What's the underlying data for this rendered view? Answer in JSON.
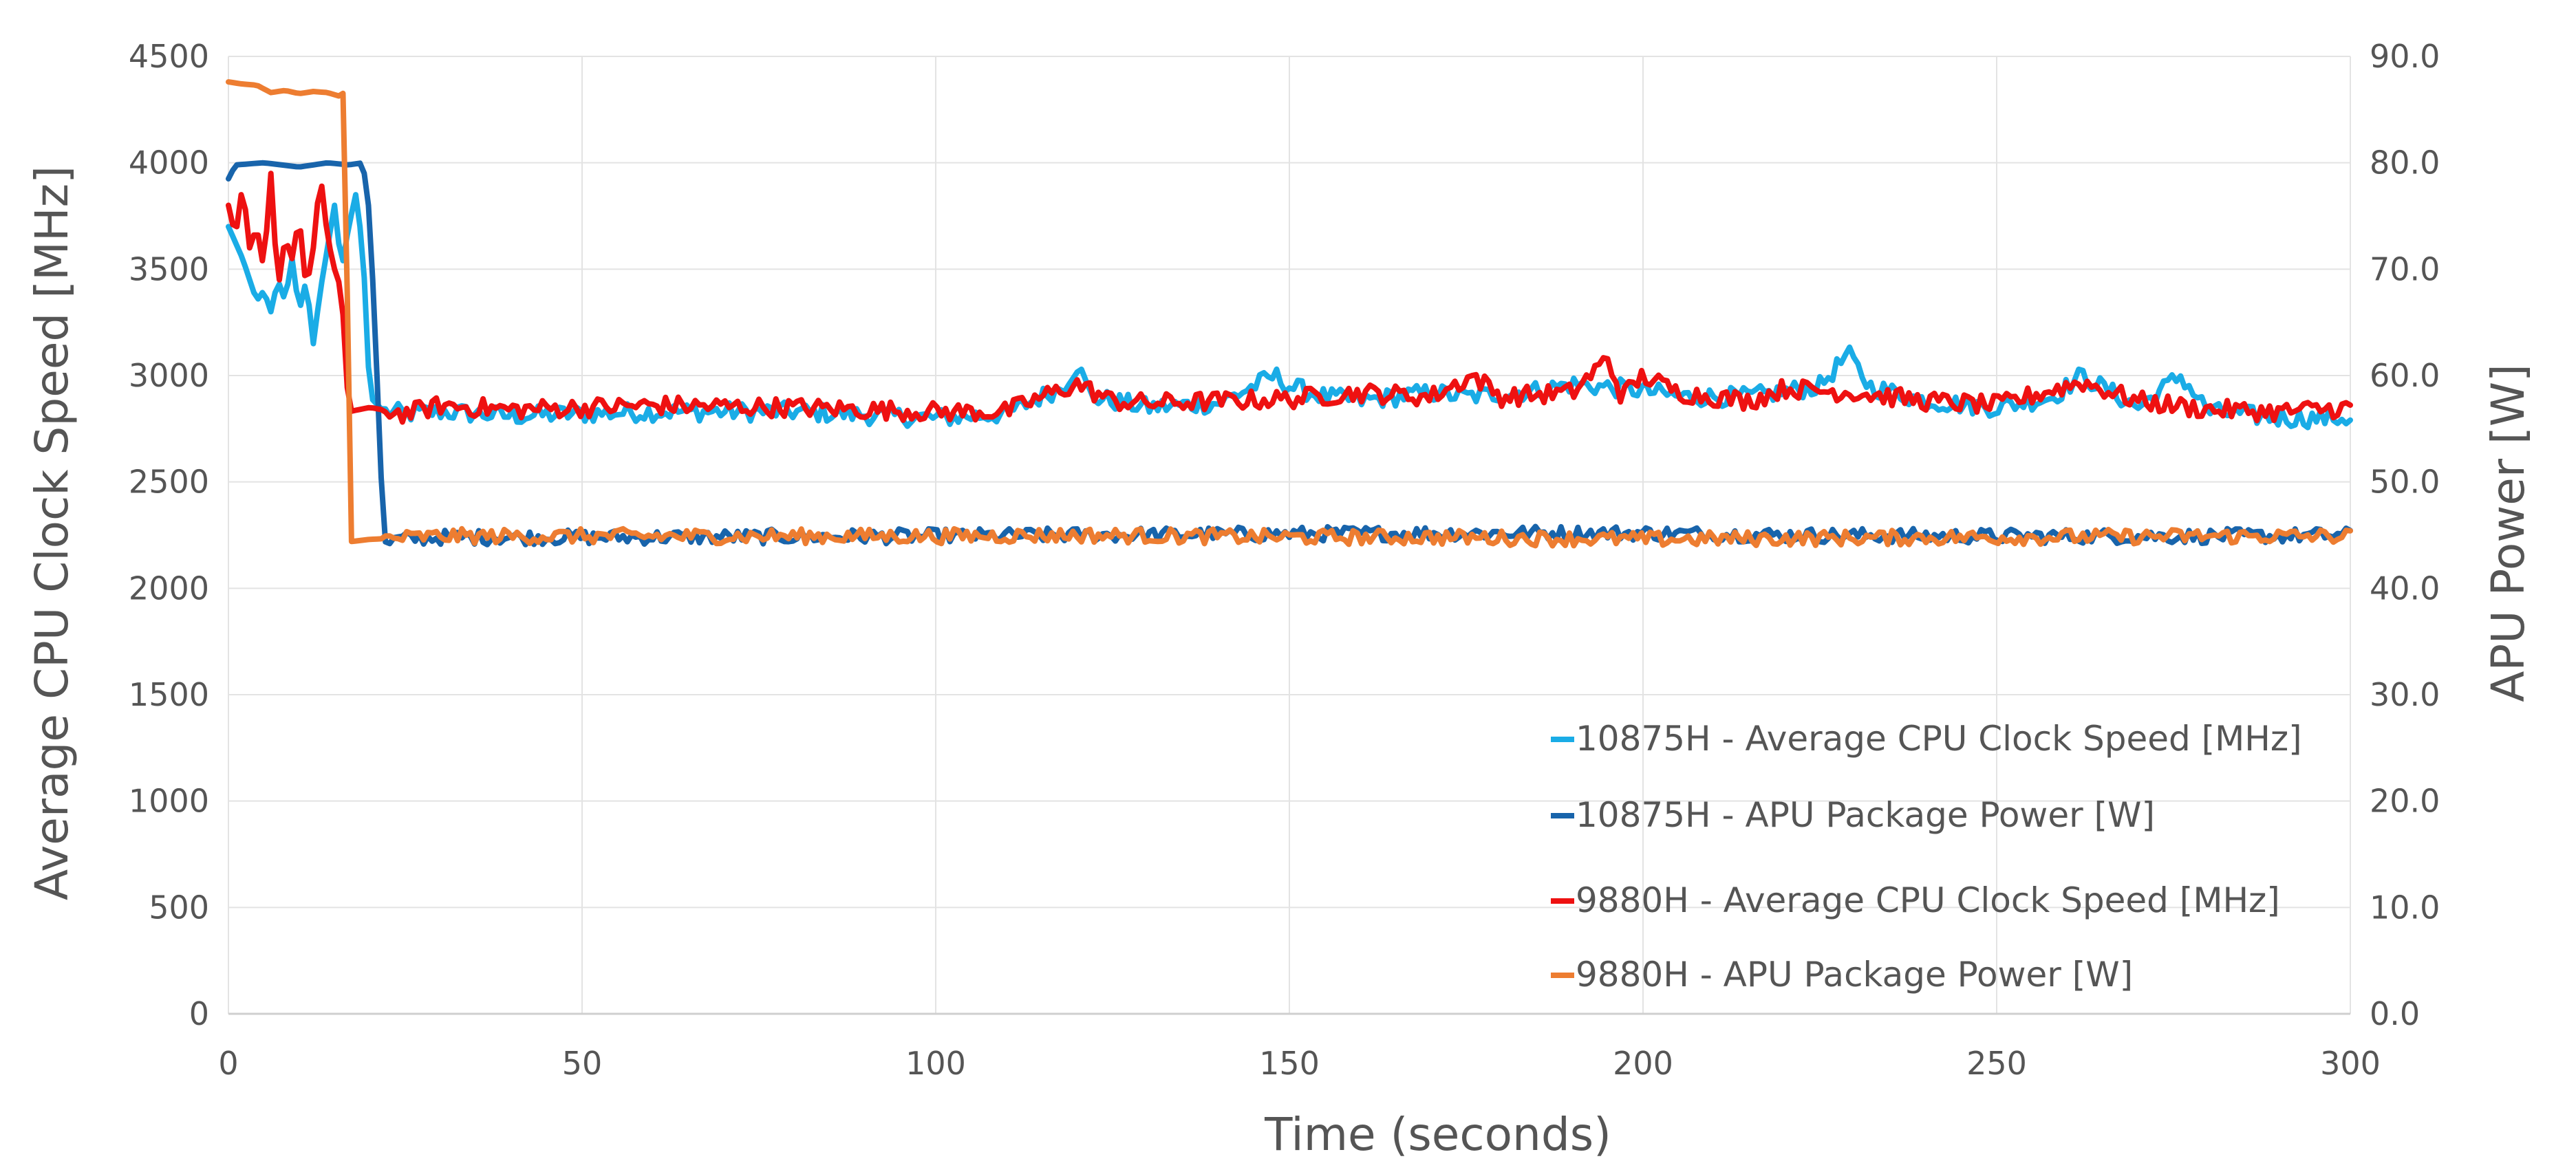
{
  "chart_data": {
    "type": "line",
    "title": "",
    "xlabel": "Time (seconds)",
    "ylabel": "Average CPU Clock Speed [MHz]",
    "y2label": "APU Power [W]",
    "xlim": [
      0,
      300
    ],
    "ylim": [
      0,
      4500
    ],
    "y2lim": [
      0,
      90
    ],
    "x_ticks": [
      "0",
      "50",
      "100",
      "150",
      "200",
      "250",
      "300"
    ],
    "y_ticks": [
      "0",
      "500",
      "1000",
      "1500",
      "2000",
      "2500",
      "3000",
      "3500",
      "4000",
      "4500"
    ],
    "y2_ticks": [
      "0.0",
      "10.0",
      "20.0",
      "30.0",
      "40.0",
      "50.0",
      "60.0",
      "70.0",
      "80.0",
      "90.0"
    ],
    "grid": true,
    "legend_position": "bottom-right",
    "series": [
      {
        "name": "10875H - Average CPU Clock Speed [MHz]",
        "axis": "left",
        "color": "#1aace6",
        "points": [
          [
            0,
            3700
          ],
          [
            2,
            3550
          ],
          [
            3,
            3450
          ],
          [
            4,
            3350
          ],
          [
            5,
            3400
          ],
          [
            6,
            3300
          ],
          [
            7,
            3450
          ],
          [
            8,
            3350
          ],
          [
            9,
            3550
          ],
          [
            10,
            3300
          ],
          [
            11,
            3450
          ],
          [
            12,
            3150
          ],
          [
            13,
            3400
          ],
          [
            14,
            3600
          ],
          [
            15,
            3800
          ],
          [
            16,
            3500
          ],
          [
            17,
            3700
          ],
          [
            18,
            3850
          ],
          [
            19,
            3600
          ],
          [
            20,
            2900
          ],
          [
            22,
            2830
          ],
          [
            25,
            2820
          ],
          [
            30,
            2830
          ],
          [
            40,
            2810
          ],
          [
            60,
            2830
          ],
          [
            80,
            2830
          ],
          [
            100,
            2800
          ],
          [
            110,
            2820
          ],
          [
            118,
            2950
          ],
          [
            120,
            3050
          ],
          [
            122,
            2900
          ],
          [
            130,
            2850
          ],
          [
            140,
            2870
          ],
          [
            148,
            3000
          ],
          [
            150,
            2950
          ],
          [
            155,
            2900
          ],
          [
            160,
            2880
          ],
          [
            170,
            2920
          ],
          [
            175,
            2900
          ],
          [
            185,
            2930
          ],
          [
            190,
            2960
          ],
          [
            200,
            2930
          ],
          [
            205,
            2900
          ],
          [
            215,
            2900
          ],
          [
            225,
            2950
          ],
          [
            229,
            3100
          ],
          [
            232,
            2950
          ],
          [
            240,
            2880
          ],
          [
            250,
            2850
          ],
          [
            258,
            2900
          ],
          [
            262,
            3000
          ],
          [
            270,
            2850
          ],
          [
            276,
            3000
          ],
          [
            280,
            2830
          ],
          [
            290,
            2800
          ],
          [
            300,
            2800
          ]
        ]
      },
      {
        "name": "10875H - APU Package Power [W]",
        "axis": "right",
        "color": "#1864ab",
        "points": [
          [
            0,
            78.5
          ],
          [
            1,
            79.8
          ],
          [
            5,
            80
          ],
          [
            10,
            79.6
          ],
          [
            14,
            80
          ],
          [
            17,
            79.8
          ],
          [
            19,
            80
          ],
          [
            20,
            75
          ],
          [
            21,
            60
          ],
          [
            22,
            44
          ],
          [
            24,
            44.6
          ],
          [
            30,
            44.8
          ],
          [
            50,
            44.8
          ],
          [
            100,
            44.9
          ],
          [
            120,
            45
          ],
          [
            150,
            45.1
          ],
          [
            170,
            45.2
          ],
          [
            200,
            45.2
          ],
          [
            220,
            45
          ],
          [
            250,
            44.9
          ],
          [
            280,
            44.9
          ],
          [
            300,
            45
          ]
        ]
      },
      {
        "name": "9880H - Average CPU Clock Speed [MHz]",
        "axis": "left",
        "color": "#ee1111",
        "points": [
          [
            0,
            3800
          ],
          [
            1,
            3650
          ],
          [
            2,
            3900
          ],
          [
            3,
            3600
          ],
          [
            4,
            3700
          ],
          [
            5,
            3500
          ],
          [
            6,
            3950
          ],
          [
            7,
            3400
          ],
          [
            8,
            3650
          ],
          [
            9,
            3550
          ],
          [
            10,
            3750
          ],
          [
            11,
            3400
          ],
          [
            12,
            3600
          ],
          [
            13,
            3950
          ],
          [
            14,
            3650
          ],
          [
            15,
            3500
          ],
          [
            16,
            3400
          ],
          [
            17,
            2830
          ],
          [
            20,
            2850
          ],
          [
            25,
            2820
          ],
          [
            30,
            2860
          ],
          [
            40,
            2840
          ],
          [
            60,
            2860
          ],
          [
            80,
            2850
          ],
          [
            100,
            2830
          ],
          [
            110,
            2830
          ],
          [
            115,
            2900
          ],
          [
            120,
            2960
          ],
          [
            125,
            2880
          ],
          [
            130,
            2870
          ],
          [
            140,
            2880
          ],
          [
            150,
            2890
          ],
          [
            160,
            2920
          ],
          [
            170,
            2900
          ],
          [
            176,
            3000
          ],
          [
            180,
            2900
          ],
          [
            190,
            2920
          ],
          [
            195,
            3080
          ],
          [
            197,
            2900
          ],
          [
            200,
            3000
          ],
          [
            205,
            2920
          ],
          [
            215,
            2880
          ],
          [
            220,
            2940
          ],
          [
            230,
            2920
          ],
          [
            240,
            2880
          ],
          [
            250,
            2860
          ],
          [
            262,
            2970
          ],
          [
            270,
            2880
          ],
          [
            280,
            2840
          ],
          [
            290,
            2830
          ],
          [
            300,
            2850
          ]
        ]
      },
      {
        "name": "9880H - APU Package Power [W]",
        "axis": "right",
        "color": "#ed7d31",
        "points": [
          [
            0,
            87.6
          ],
          [
            2,
            87.4
          ],
          [
            4,
            87.3
          ],
          [
            6,
            86.6
          ],
          [
            8,
            86.8
          ],
          [
            10,
            86.5
          ],
          [
            12,
            86.7
          ],
          [
            14,
            86.6
          ],
          [
            16,
            86.2
          ],
          [
            16.5,
            87
          ],
          [
            17,
            55
          ],
          [
            17.4,
            44.4
          ],
          [
            20,
            44.6
          ],
          [
            30,
            44.9
          ],
          [
            50,
            44.9
          ],
          [
            100,
            44.9
          ],
          [
            120,
            45
          ],
          [
            150,
            44.8
          ],
          [
            170,
            44.8
          ],
          [
            200,
            44.6
          ],
          [
            220,
            44.7
          ],
          [
            250,
            44.8
          ],
          [
            280,
            44.9
          ],
          [
            300,
            44.9
          ]
        ]
      }
    ]
  }
}
